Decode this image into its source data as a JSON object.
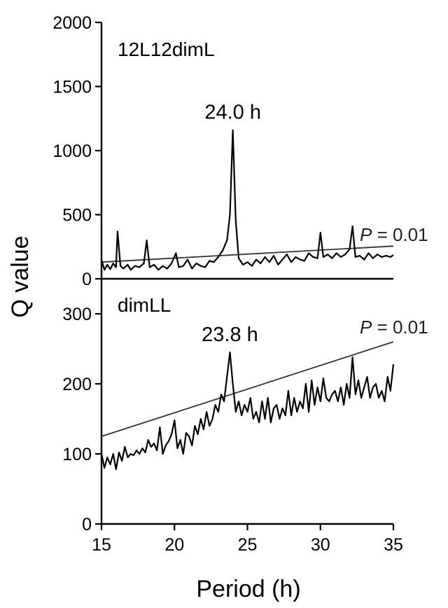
{
  "chart_data": {
    "type": "line",
    "xlabel": "Period (h)",
    "ylabel": "Q value",
    "x_ticks": [
      "15",
      "20",
      "25",
      "30",
      "35"
    ],
    "xlim": [
      15,
      35
    ],
    "panels": [
      {
        "label": "12L12dimL",
        "ylim": [
          0,
          2000
        ],
        "y_ticks": [
          "0",
          "500",
          "1000",
          "1500",
          "2000"
        ],
        "peak": {
          "x": 24.0,
          "y": 1160,
          "label": "24.0 h"
        },
        "threshold": {
          "label_p": "P",
          "label_rest": " = 0.01",
          "from": [
            15,
            130
          ],
          "to": [
            35,
            255
          ]
        },
        "series": [
          {
            "x": [
              15.0,
              15.2,
              15.4,
              15.6,
              15.8,
              16.0,
              16.1,
              16.3,
              16.5,
              16.8,
              17.0,
              17.3,
              17.6,
              17.9,
              18.1,
              18.3,
              18.6,
              18.9,
              19.2,
              19.5,
              19.8,
              20.1,
              20.3,
              20.6,
              20.9,
              21.2,
              21.5,
              21.8,
              22.1,
              22.4,
              22.7,
              23.0,
              23.3,
              23.6,
              23.8,
              24.0,
              24.2,
              24.4,
              24.7,
              25.0,
              25.3,
              25.6,
              25.9,
              26.2,
              26.5,
              26.8,
              27.1,
              27.4,
              27.7,
              28.0,
              28.3,
              28.6,
              28.9,
              29.2,
              29.5,
              29.8,
              30.0,
              30.2,
              30.5,
              30.8,
              31.1,
              31.4,
              31.7,
              32.0,
              32.2,
              32.4,
              32.7,
              33.0,
              33.3,
              33.6,
              33.9,
              34.2,
              34.5,
              34.8,
              35.0
            ],
            "y": [
              150,
              70,
              110,
              75,
              120,
              90,
              370,
              100,
              80,
              110,
              70,
              100,
              90,
              120,
              300,
              90,
              110,
              70,
              100,
              80,
              120,
              200,
              90,
              100,
              150,
              80,
              120,
              100,
              90,
              140,
              130,
              170,
              220,
              300,
              500,
              1160,
              450,
              160,
              110,
              130,
              100,
              150,
              120,
              170,
              130,
              180,
              110,
              150,
              190,
              130,
              170,
              150,
              140,
              200,
              170,
              160,
              360,
              170,
              190,
              160,
              200,
              170,
              190,
              230,
              410,
              170,
              180,
              150,
              200,
              160,
              190,
              170,
              180,
              170,
              185
            ]
          }
        ]
      },
      {
        "label": "dimLL",
        "ylim": [
          0,
          350
        ],
        "y_ticks": [
          "0",
          "100",
          "200",
          "300"
        ],
        "peak": {
          "x": 23.8,
          "y": 245,
          "label": "23.8 h"
        },
        "threshold": {
          "label_p": "P",
          "label_rest": " = 0.01",
          "from": [
            15,
            125
          ],
          "to": [
            35,
            260
          ]
        },
        "series": [
          {
            "x": [
              15.0,
              15.2,
              15.4,
              15.6,
              15.8,
              16.0,
              16.2,
              16.4,
              16.6,
              16.8,
              17.0,
              17.2,
              17.4,
              17.6,
              17.8,
              18.0,
              18.2,
              18.4,
              18.6,
              18.8,
              19.0,
              19.2,
              19.4,
              19.6,
              19.8,
              20.0,
              20.2,
              20.4,
              20.6,
              20.8,
              21.0,
              21.2,
              21.4,
              21.6,
              21.8,
              22.0,
              22.2,
              22.4,
              22.6,
              22.8,
              23.0,
              23.2,
              23.4,
              23.6,
              23.8,
              24.0,
              24.2,
              24.4,
              24.6,
              24.8,
              25.0,
              25.2,
              25.4,
              25.6,
              25.8,
              26.0,
              26.2,
              26.4,
              26.6,
              26.8,
              27.0,
              27.2,
              27.4,
              27.6,
              27.8,
              28.0,
              28.2,
              28.4,
              28.6,
              28.8,
              29.0,
              29.2,
              29.4,
              29.6,
              29.8,
              30.0,
              30.2,
              30.4,
              30.6,
              30.8,
              31.0,
              31.2,
              31.4,
              31.6,
              31.8,
              32.0,
              32.2,
              32.4,
              32.6,
              32.8,
              33.0,
              33.2,
              33.4,
              33.6,
              33.8,
              34.0,
              34.2,
              34.4,
              34.6,
              34.8,
              35.0
            ],
            "y": [
              100,
              80,
              95,
              85,
              100,
              78,
              102,
              90,
              110,
              95,
              100,
              98,
              105,
              100,
              108,
              102,
              120,
              110,
              115,
              105,
              138,
              100,
              112,
              118,
              128,
              148,
              108,
              120,
              100,
              130,
              125,
              112,
              140,
              128,
              150,
              135,
              160,
              140,
              150,
              170,
              160,
              185,
              175,
              210,
              245,
              200,
              160,
              175,
              155,
              170,
              160,
              180,
              150,
              160,
              145,
              175,
              150,
              180,
              145,
              165,
              170,
              150,
              165,
              155,
              190,
              155,
              180,
              160,
              175,
              165,
              200,
              160,
              205,
              170,
              195,
              175,
              208,
              180,
              175,
              185,
              190,
              175,
              195,
              170,
              200,
              180,
              238,
              185,
              205,
              180,
              195,
              210,
              180,
              195,
              200,
              180,
              190,
              175,
              210,
              190,
              228
            ]
          }
        ]
      }
    ]
  }
}
